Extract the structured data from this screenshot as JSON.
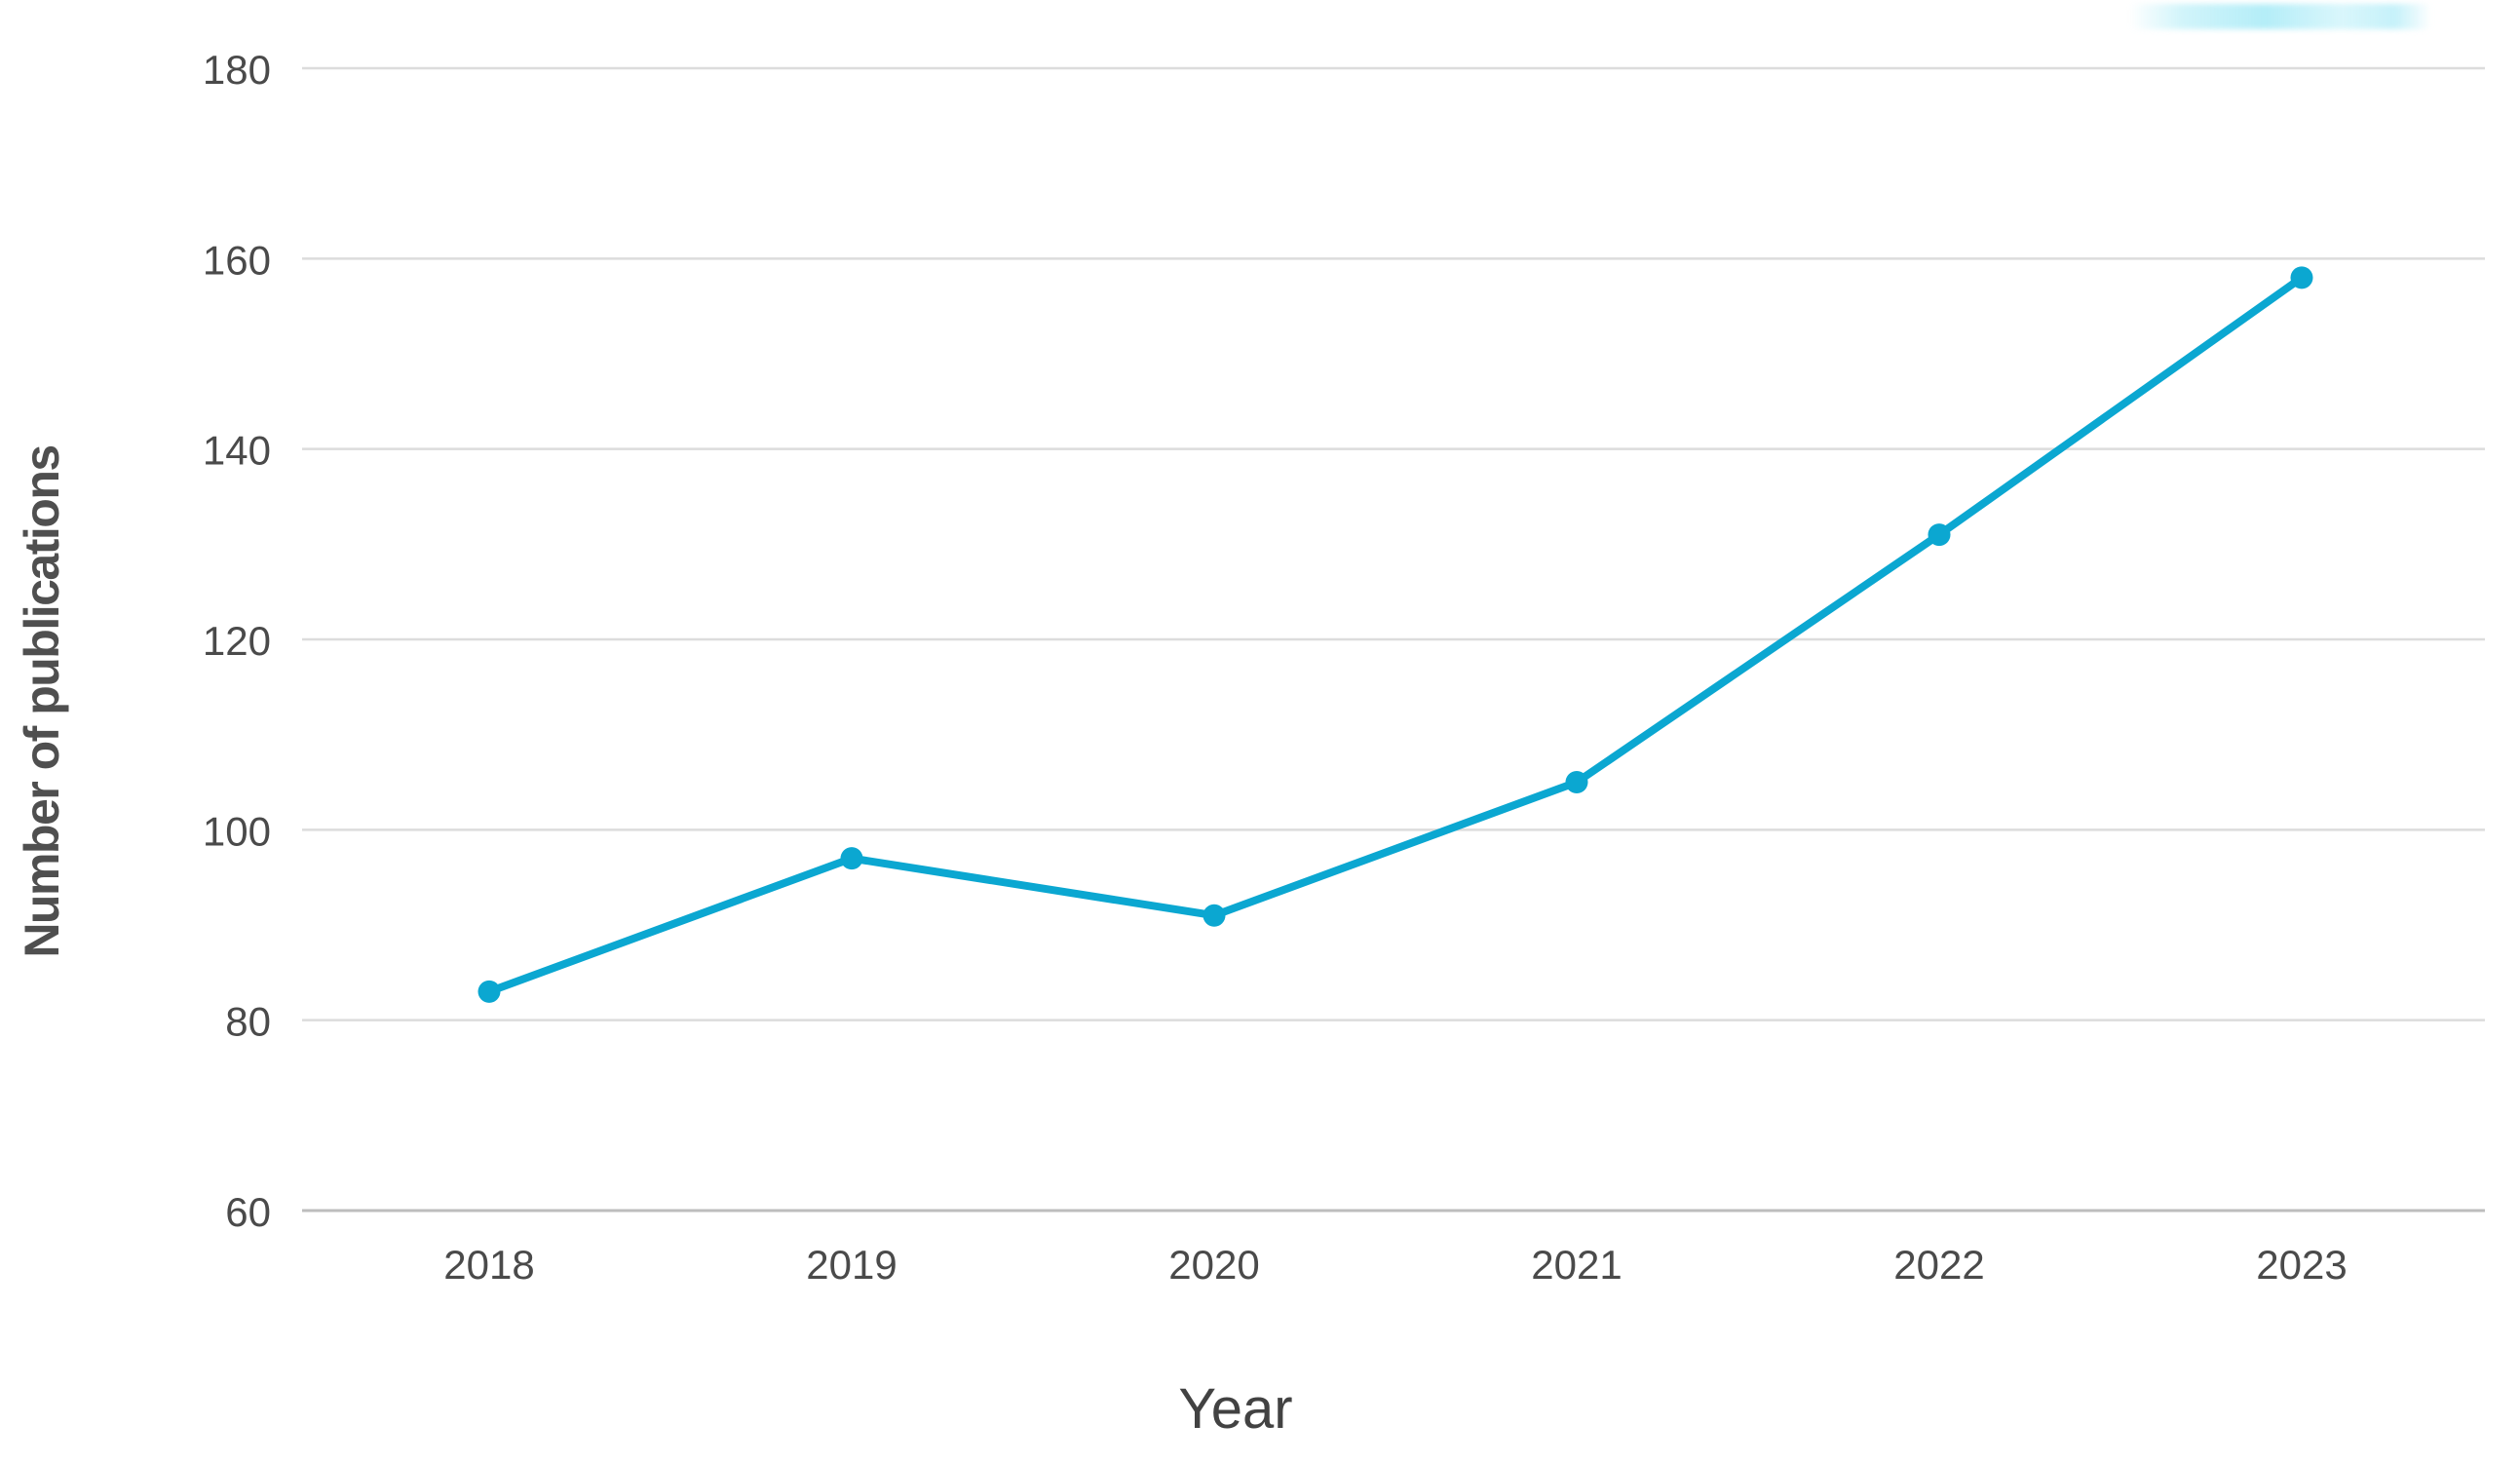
{
  "chart_data": {
    "type": "line",
    "title": "",
    "categories": [
      "2018",
      "2019",
      "2020",
      "2021",
      "2022",
      "2023"
    ],
    "series": [
      {
        "name": "publications",
        "values": [
          83,
          97,
          91,
          105,
          131,
          158
        ]
      }
    ],
    "xlabel": "Year",
    "ylabel": "Number of publications",
    "ylim": [
      60,
      180
    ],
    "yticks": [
      60,
      80,
      100,
      120,
      140,
      160,
      180
    ],
    "grid": "horizontal",
    "legend": "none",
    "marker": "circle"
  },
  "colors": {
    "line": "#0ba7d1",
    "marker": "#0ba7d1",
    "gridline": "#dcdcdc",
    "baseline": "#bdbdbd",
    "tick_label": "#4a4a4a",
    "axis_title": "#4f4f4f",
    "watermark_tint": "#bfeef5"
  }
}
